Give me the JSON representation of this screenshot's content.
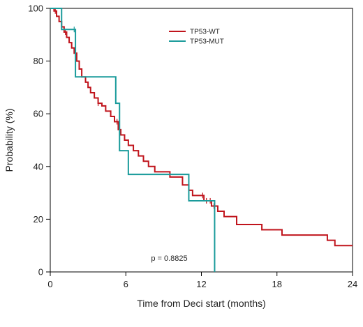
{
  "chart_data": {
    "type": "line",
    "subtype": "kaplan-meier step",
    "title": "",
    "xlabel": "Time from Deci start (months)",
    "ylabel": "Probability (%)",
    "xlim": [
      0,
      24
    ],
    "ylim": [
      0,
      100
    ],
    "xticks": [
      0,
      6,
      12,
      18,
      24
    ],
    "yticks": [
      0,
      20,
      40,
      60,
      80,
      100
    ],
    "grid": false,
    "legend_position": "top-center",
    "annotation": "p = 0.8825",
    "series": [
      {
        "name": "TP53-WT",
        "color": "#c0141c",
        "steps": [
          [
            0,
            100
          ],
          [
            0.3,
            99
          ],
          [
            0.5,
            97
          ],
          [
            0.7,
            95
          ],
          [
            0.9,
            93
          ],
          [
            1.1,
            91
          ],
          [
            1.3,
            89
          ],
          [
            1.5,
            87
          ],
          [
            1.7,
            85
          ],
          [
            1.9,
            83
          ],
          [
            2.1,
            80
          ],
          [
            2.3,
            77
          ],
          [
            2.5,
            74
          ],
          [
            2.8,
            72
          ],
          [
            3.0,
            70
          ],
          [
            3.2,
            68
          ],
          [
            3.5,
            66
          ],
          [
            3.8,
            64
          ],
          [
            4.1,
            63
          ],
          [
            4.4,
            61
          ],
          [
            4.8,
            59
          ],
          [
            5.1,
            57
          ],
          [
            5.4,
            54
          ],
          [
            5.6,
            52
          ],
          [
            5.9,
            50
          ],
          [
            6.2,
            48
          ],
          [
            6.6,
            46
          ],
          [
            7.0,
            44
          ],
          [
            7.4,
            42
          ],
          [
            7.8,
            40
          ],
          [
            8.3,
            38
          ],
          [
            9.5,
            36
          ],
          [
            10.5,
            33
          ],
          [
            11.0,
            31
          ],
          [
            11.3,
            29
          ],
          [
            12.2,
            27
          ],
          [
            12.8,
            25
          ],
          [
            13.3,
            23
          ],
          [
            13.8,
            21
          ],
          [
            14.8,
            18
          ],
          [
            16.8,
            16
          ],
          [
            18.4,
            14
          ],
          [
            22.0,
            12
          ],
          [
            22.6,
            10
          ],
          [
            24.0,
            10
          ]
        ],
        "censor_times": [
          0.4,
          1.2,
          3.8,
          5.3,
          12.1,
          12.4,
          12.7,
          13.0
        ]
      },
      {
        "name": "TP53-MUT",
        "color": "#1a9b9b",
        "steps": [
          [
            0,
            100
          ],
          [
            0.9,
            92
          ],
          [
            1.8,
            92
          ],
          [
            2.0,
            74
          ],
          [
            4.9,
            74
          ],
          [
            5.2,
            64
          ],
          [
            5.5,
            46
          ],
          [
            6.1,
            46
          ],
          [
            6.2,
            37
          ],
          [
            10.9,
            37
          ],
          [
            11.0,
            27
          ],
          [
            13.0,
            27
          ],
          [
            13.05,
            0
          ]
        ],
        "censor_times": [
          1.9
        ]
      }
    ]
  }
}
